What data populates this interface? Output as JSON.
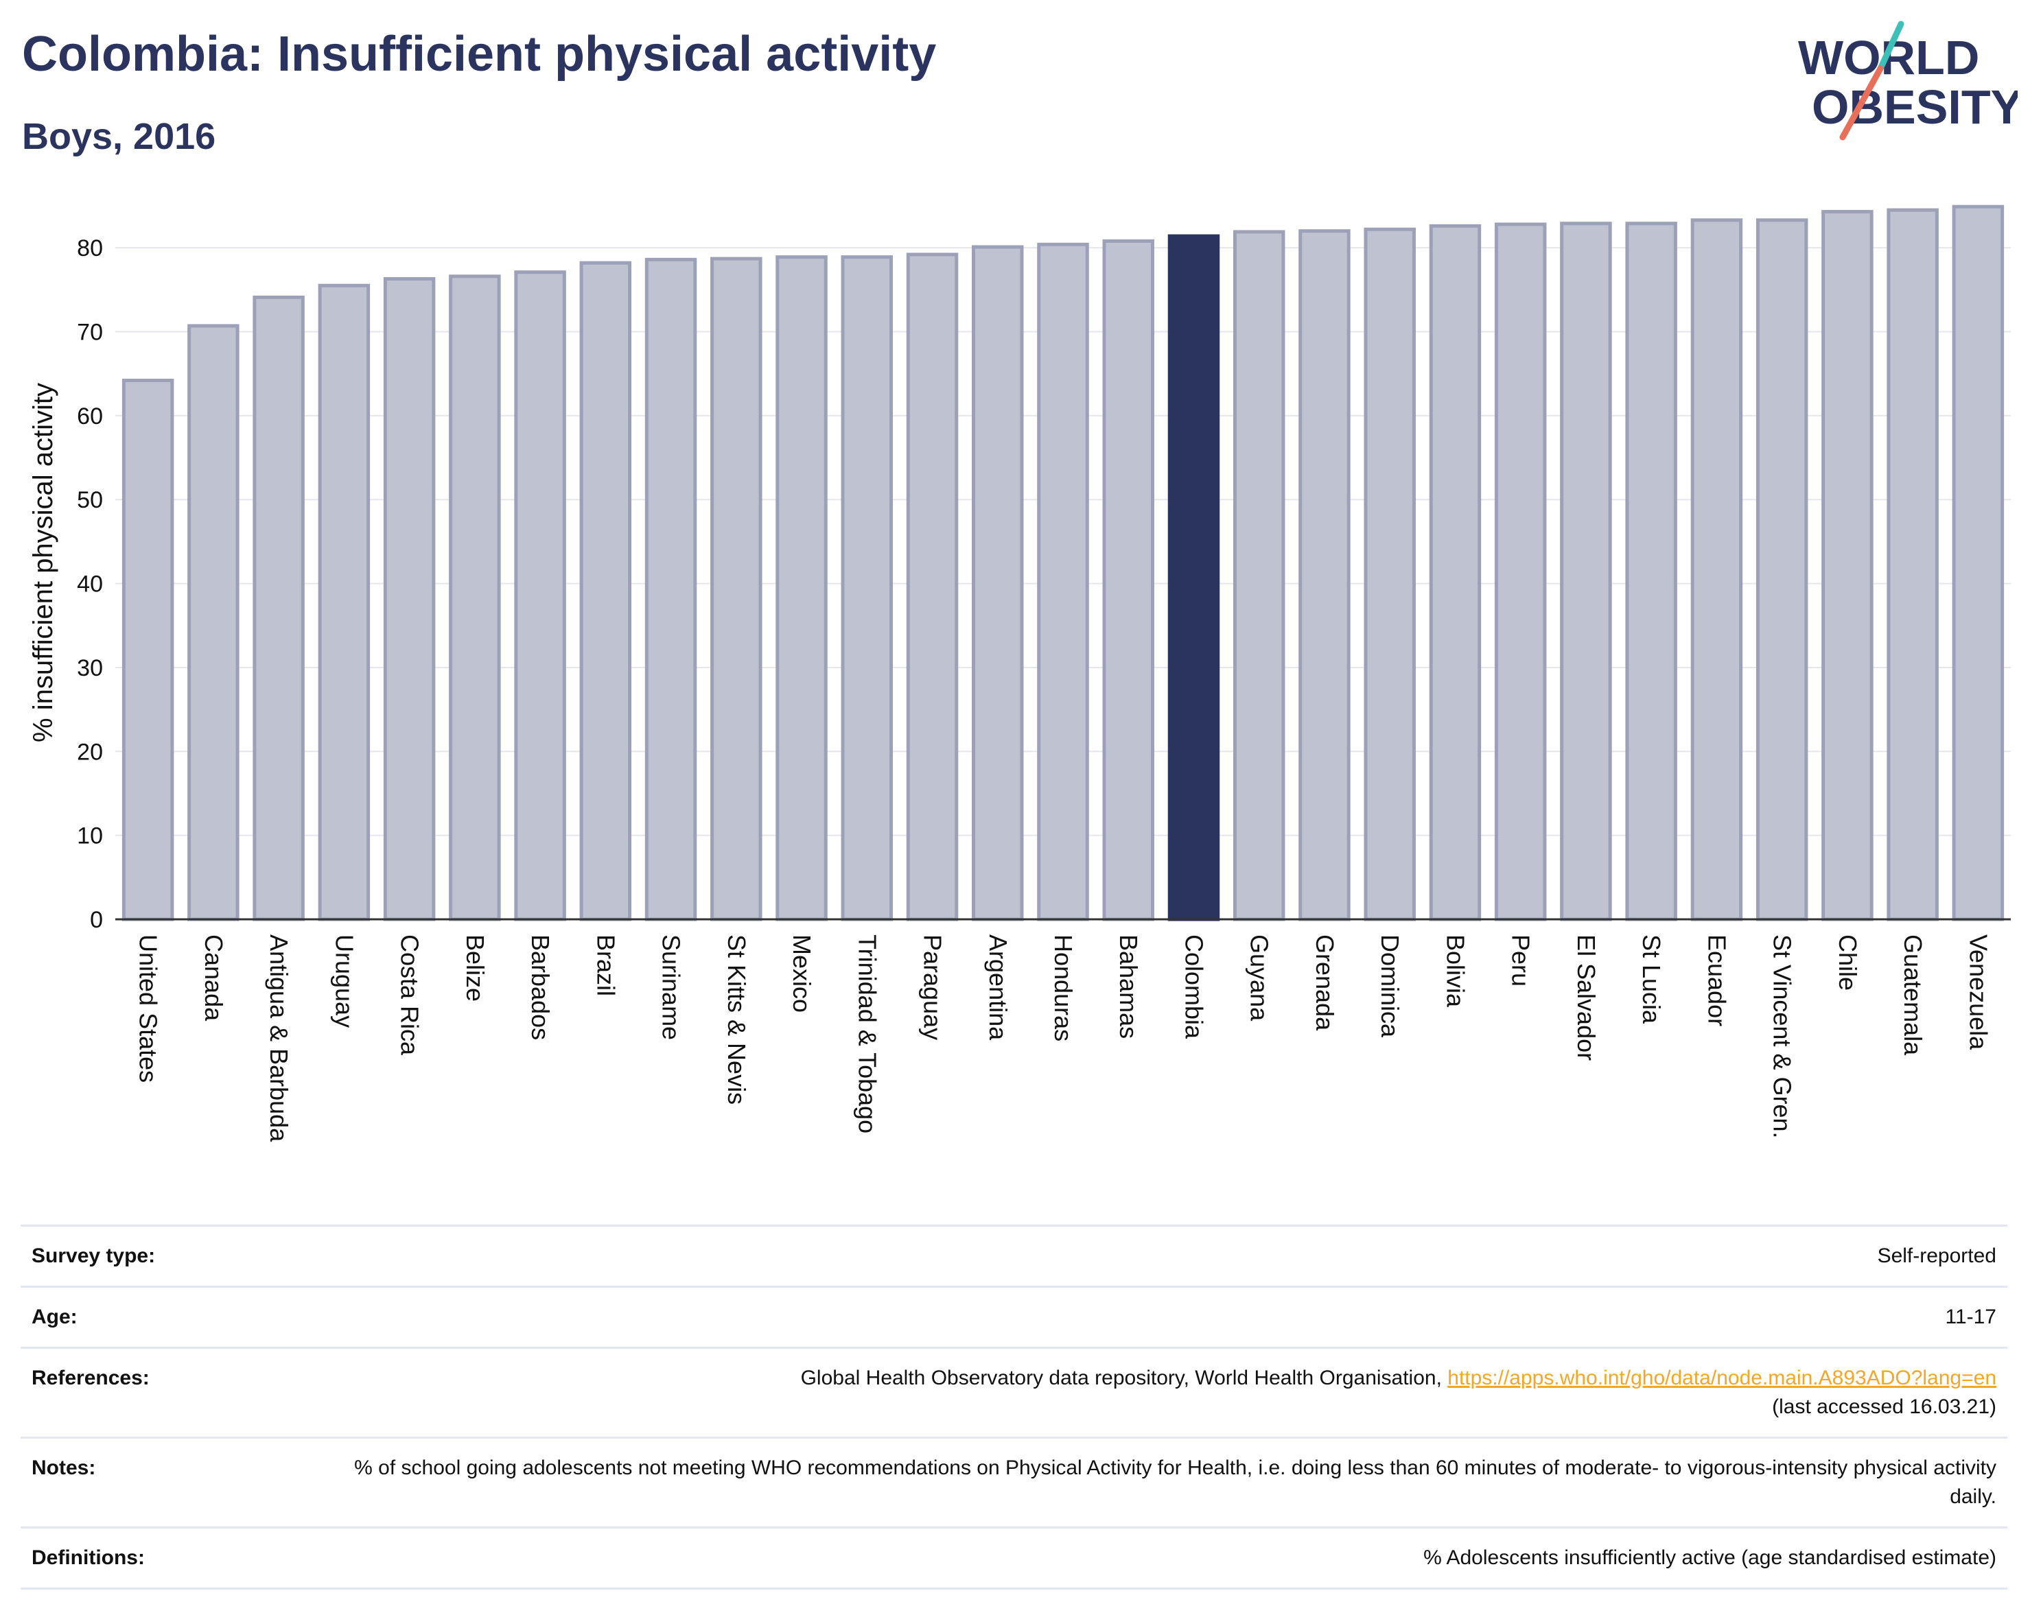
{
  "header": {
    "title": "Colombia: Insufficient physical activity",
    "subtitle": "Boys, 2016"
  },
  "logo": {
    "line1": "WORLD",
    "line2": "OBESITY",
    "colors": {
      "text": "#2b345f",
      "slash_red": "#e8705a",
      "slash_teal": "#3cc0b8"
    }
  },
  "chart_data": {
    "type": "bar",
    "title": "",
    "xlabel": "",
    "ylabel": "% insufficient physical activity",
    "ylim": [
      0,
      85
    ],
    "yticks": [
      0,
      10,
      20,
      30,
      40,
      50,
      60,
      70,
      80
    ],
    "grid": true,
    "highlight": "Colombia",
    "colors": {
      "bar": "#bfc2d0",
      "bar_border": "#9ca1b8",
      "highlight": "#2b345f",
      "grid": "#e6e6ee",
      "axis": "#333333"
    },
    "categories": [
      "United States",
      "Canada",
      "Antigua & Barbuda",
      "Uruguay",
      "Costa Rica",
      "Belize",
      "Barbados",
      "Brazil",
      "Suriname",
      "St Kitts & Nevis",
      "Mexico",
      "Trinidad & Tobago",
      "Paraguay",
      "Argentina",
      "Honduras",
      "Bahamas",
      "Colombia",
      "Guyana",
      "Grenada",
      "Dominica",
      "Bolivia",
      "Peru",
      "El Salvador",
      "St Lucia",
      "Ecuador",
      "St Vincent & Gren.",
      "Chile",
      "Guatemala",
      "Venezuela"
    ],
    "values": [
      64.2,
      70.7,
      74.1,
      75.5,
      76.3,
      76.6,
      77.1,
      78.2,
      78.6,
      78.7,
      78.9,
      78.9,
      79.2,
      80.1,
      80.4,
      80.8,
      81.4,
      81.9,
      82.0,
      82.2,
      82.6,
      82.8,
      82.9,
      82.9,
      83.3,
      83.3,
      84.3,
      84.5,
      84.9
    ]
  },
  "footer": {
    "rows": [
      {
        "label": "Survey type:",
        "value": "Self-reported"
      },
      {
        "label": "Age:",
        "value": "11-17"
      },
      {
        "label": "References:",
        "value": "Global Health Observatory data repository, World Health Organisation, ",
        "link": "https://apps.who.int/gho/data/node.main.A893ADO?lang=en",
        "value2": "(last accessed 16.03.21)"
      },
      {
        "label": "Notes:",
        "value": "% of school going adolescents not meeting WHO recommendations on Physical Activity for Health, i.e. doing less than 60 minutes of moderate- to vigorous-intensity physical activity daily."
      },
      {
        "label": "Definitions:",
        "value": "% Adolescents insufficiently active (age standardised estimate)"
      }
    ]
  }
}
